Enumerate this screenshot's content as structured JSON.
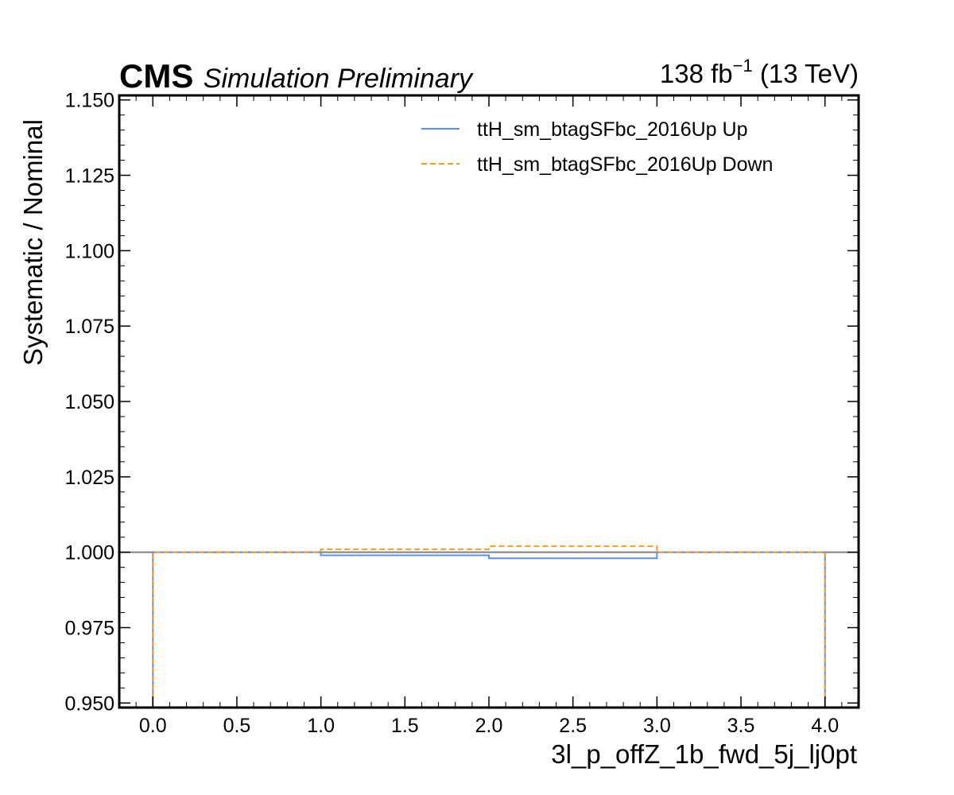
{
  "header": {
    "experiment": "CMS",
    "status": "Simulation Preliminary",
    "lumi_value": "138 fb",
    "lumi_exponent": "−1",
    "energy": " (13 TeV)"
  },
  "chart_data": {
    "type": "step",
    "xlabel": "3l_p_offZ_1b_fwd_5j_lj0pt",
    "ylabel": "Systematic / Nominal",
    "xlim": [
      -0.2,
      4.2
    ],
    "ylim": [
      0.9485,
      1.1515
    ],
    "x_ticks": [
      "0.0",
      "0.5",
      "1.0",
      "1.5",
      "2.0",
      "2.5",
      "3.0",
      "3.5",
      "4.0"
    ],
    "y_ticks": [
      "0.950",
      "0.975",
      "1.000",
      "1.025",
      "1.050",
      "1.075",
      "1.100",
      "1.125",
      "1.150"
    ],
    "bin_edges": [
      0,
      1,
      2,
      3,
      4
    ],
    "reference_line": 1.0,
    "legend_position": "top-right",
    "series": [
      {
        "name": "ttH_sm_btagSFbc_2016Up Up",
        "values": [
          1.0,
          0.999,
          0.998,
          1.0
        ],
        "color": "#5790fc",
        "style": "solid"
      },
      {
        "name": "ttH_sm_btagSFbc_2016Up Down",
        "values": [
          1.0,
          1.001,
          1.002,
          1.0
        ],
        "color": "#f89c20",
        "style": "dashed"
      }
    ]
  }
}
